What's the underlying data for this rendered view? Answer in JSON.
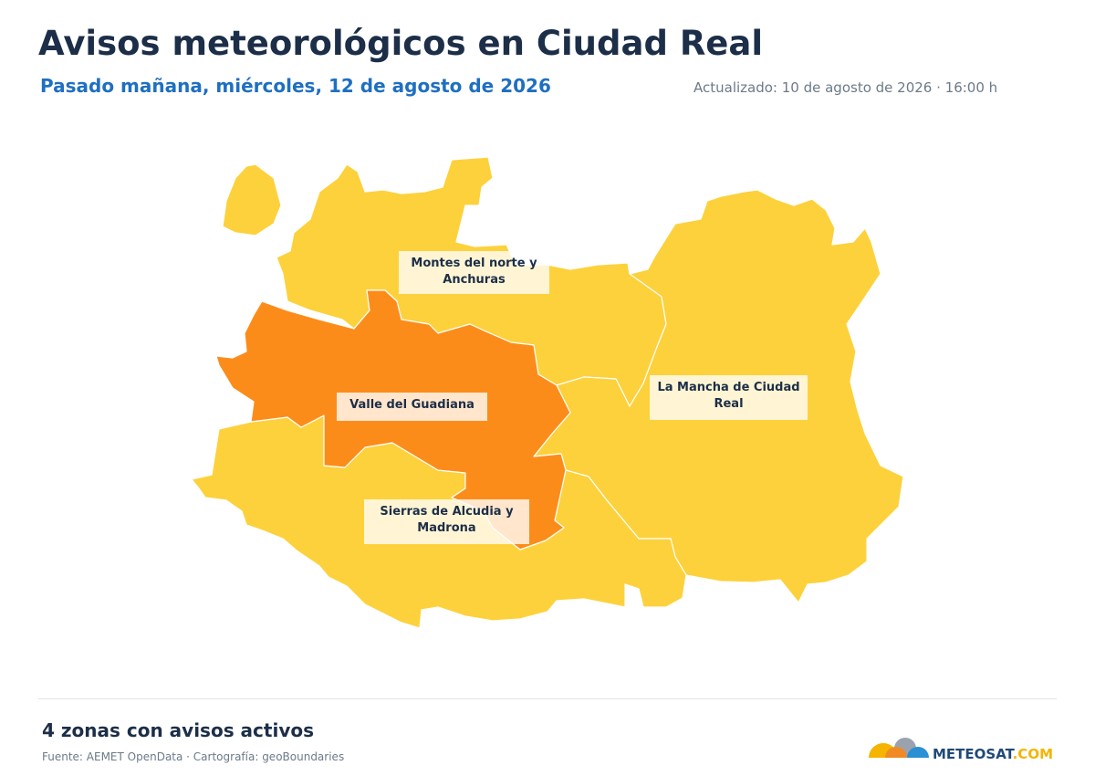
{
  "header": {
    "title": "Avisos meteorológicos en Ciudad Real",
    "subtitle": "Pasado mañana, miércoles, 12 de agosto de 2026",
    "updated": "Actualizado: 10 de agosto de 2026 · 16:00 h"
  },
  "zones": [
    {
      "label": "Montes del norte y Anchuras",
      "color": "#fdd13b"
    },
    {
      "label": "Valle del Guadiana",
      "color": "#fc8c1a"
    },
    {
      "label": "La Mancha de Ciudad Real",
      "color": "#fdd13b"
    },
    {
      "label": "Sierras de Alcudia y Madrona",
      "color": "#fdd13b"
    }
  ],
  "footer": {
    "summary": "4 zonas con avisos activos",
    "source": "Fuente: AEMET OpenData · Cartografía: geoBoundaries"
  },
  "logo": {
    "main": "METEOSAT",
    "suffix": ".COM"
  }
}
